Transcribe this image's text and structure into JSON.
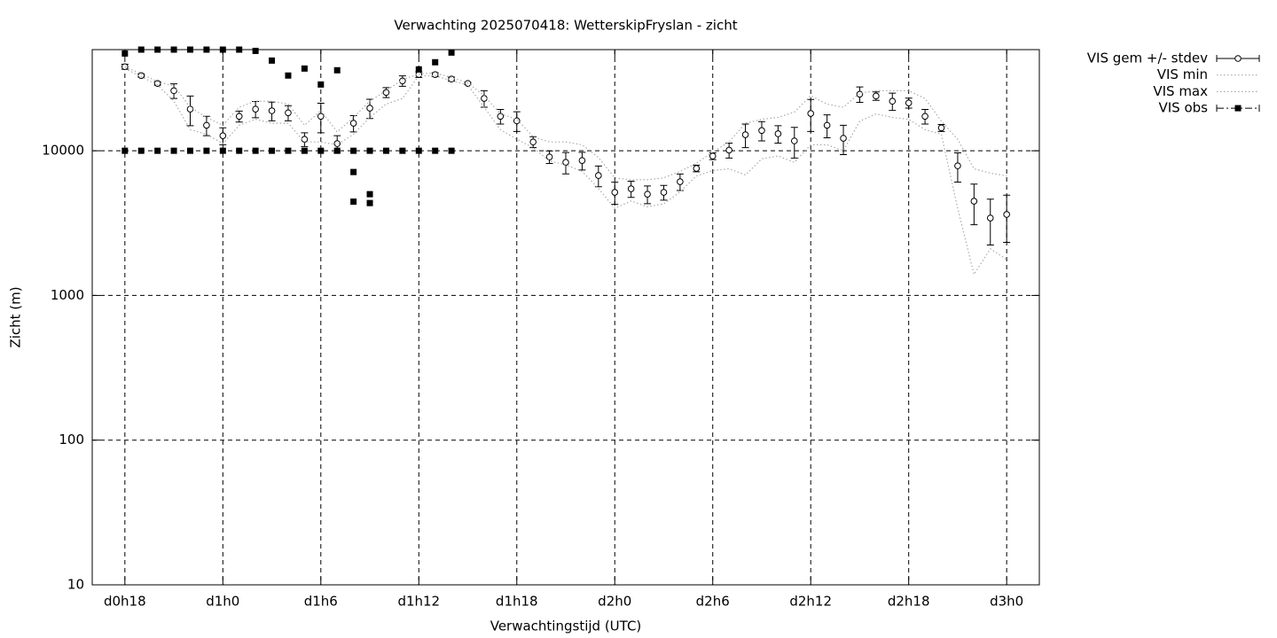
{
  "chart_data": {
    "type": "line",
    "title": "Verwachting 2025070418: WetterskipFryslan - zicht",
    "xlabel": "Verwachtingstijd (UTC)",
    "ylabel": "Zicht (m)",
    "xlim": [
      16,
      74
    ],
    "xticks": [
      {
        "value": 18,
        "label": "d0h18"
      },
      {
        "value": 24,
        "label": "d1h0"
      },
      {
        "value": 30,
        "label": "d1h6"
      },
      {
        "value": 36,
        "label": "d1h12"
      },
      {
        "value": 42,
        "label": "d1h18"
      },
      {
        "value": 48,
        "label": "d2h0"
      },
      {
        "value": 54,
        "label": "d2h6"
      },
      {
        "value": 60,
        "label": "d2h12"
      },
      {
        "value": 66,
        "label": "d2h18"
      },
      {
        "value": 72,
        "label": "d3h0"
      }
    ],
    "ylim": [
      10,
      50000
    ],
    "yticks": [
      10,
      100,
      1000,
      10000
    ],
    "log_y": true,
    "grid": true,
    "legend": "outside-right",
    "x": [
      18,
      19,
      20,
      21,
      22,
      23,
      24,
      25,
      26,
      27,
      28,
      29,
      30,
      31,
      32,
      33,
      34,
      35,
      36,
      37,
      38,
      39,
      40,
      41,
      42,
      43,
      44,
      45,
      46,
      47,
      48,
      49,
      50,
      51,
      52,
      53,
      54,
      55,
      56,
      57,
      58,
      59,
      60,
      61,
      62,
      63,
      64,
      65,
      66,
      67,
      68,
      69,
      70,
      71,
      72
    ],
    "series": [
      {
        "name": "VIS gem +/- stdev",
        "style": "errorbar",
        "color": "#000000",
        "values": [
          38100,
          33100,
          29200,
          26000,
          19400,
          15000,
          12700,
          17300,
          19400,
          18900,
          18300,
          12000,
          17300,
          11200,
          15500,
          19700,
          25300,
          30400,
          33600,
          33600,
          31300,
          29200,
          23000,
          17300,
          16100,
          11500,
          9060,
          8320,
          8560,
          6740,
          5160,
          5460,
          5010,
          5160,
          6110,
          7550,
          9190,
          10100,
          12900,
          13800,
          13100,
          11700,
          18100,
          15000,
          12200,
          24600,
          23900,
          22000,
          21400,
          17300,
          14400,
          7870,
          4480,
          3430,
          3630
        ],
        "errors": [
          1500,
          800,
          800,
          3000,
          4500,
          2300,
          1700,
          1500,
          2500,
          2800,
          2200,
          1300,
          4000,
          1500,
          2000,
          3000,
          2000,
          2500,
          1500,
          1000,
          1000,
          500,
          3000,
          2000,
          2500,
          1000,
          900,
          1400,
          1200,
          1100,
          900,
          700,
          700,
          600,
          800,
          400,
          500,
          1200,
          2400,
          2100,
          1800,
          2800,
          4500,
          2700,
          2800,
          3000,
          1600,
          3000,
          1700,
          2000,
          800,
          1800,
          1400,
          1200,
          1300
        ]
      },
      {
        "name": "VIS min",
        "style": "dotted",
        "color": "#aaaaaa",
        "values": [
          37000,
          32500,
          28500,
          22000,
          14000,
          13000,
          11200,
          15000,
          16500,
          15500,
          15500,
          11500,
          11500,
          11000,
          13000,
          17000,
          21000,
          23000,
          33000,
          33000,
          30500,
          28500,
          20000,
          14000,
          12000,
          10500,
          8500,
          8000,
          7200,
          5500,
          4000,
          4500,
          4100,
          4300,
          5200,
          6700,
          7300,
          7500,
          6800,
          8800,
          9200,
          8300,
          11000,
          11000,
          10000,
          16000,
          18000,
          17000,
          16500,
          14000,
          13000,
          4000,
          1400,
          2100,
          1770
        ]
      },
      {
        "name": "VIS max",
        "style": "dotted",
        "color": "#aaaaaa",
        "values": [
          38000,
          34000,
          30000,
          28000,
          20000,
          17000,
          15000,
          20000,
          22000,
          22000,
          21000,
          15000,
          19000,
          13500,
          17000,
          22000,
          26000,
          31000,
          34000,
          34500,
          32000,
          29500,
          24000,
          18000,
          16500,
          12500,
          11500,
          11500,
          11000,
          9000,
          6500,
          6300,
          6300,
          6500,
          7200,
          8200,
          9800,
          11500,
          15500,
          16500,
          17000,
          18500,
          24000,
          21000,
          20000,
          25000,
          26000,
          26000,
          26000,
          23000,
          16000,
          12000,
          7500,
          7000,
          6700
        ]
      },
      {
        "name": "VIS obs",
        "style": "points",
        "color": "#000000",
        "x": [
          18,
          18,
          19,
          19,
          20,
          20,
          21,
          21,
          22,
          22,
          23,
          23,
          24,
          24,
          25,
          25,
          26,
          26,
          27,
          27,
          28,
          28,
          29,
          29,
          30,
          30,
          31,
          31,
          32,
          32,
          32,
          33,
          33,
          33,
          34,
          35,
          36,
          36,
          37,
          37,
          38,
          38
        ],
        "values": [
          10000,
          47000,
          10000,
          50000,
          10000,
          50000,
          10000,
          50000,
          10000,
          50000,
          10000,
          50000,
          10000,
          50000,
          10000,
          50000,
          10000,
          49000,
          10000,
          42000,
          10000,
          33100,
          10000,
          37000,
          10000,
          28700,
          10000,
          36000,
          10000,
          7130,
          4450,
          10000,
          5010,
          4350,
          10000,
          10000,
          10000,
          36500,
          10000,
          40900,
          10000,
          47700
        ]
      }
    ]
  }
}
